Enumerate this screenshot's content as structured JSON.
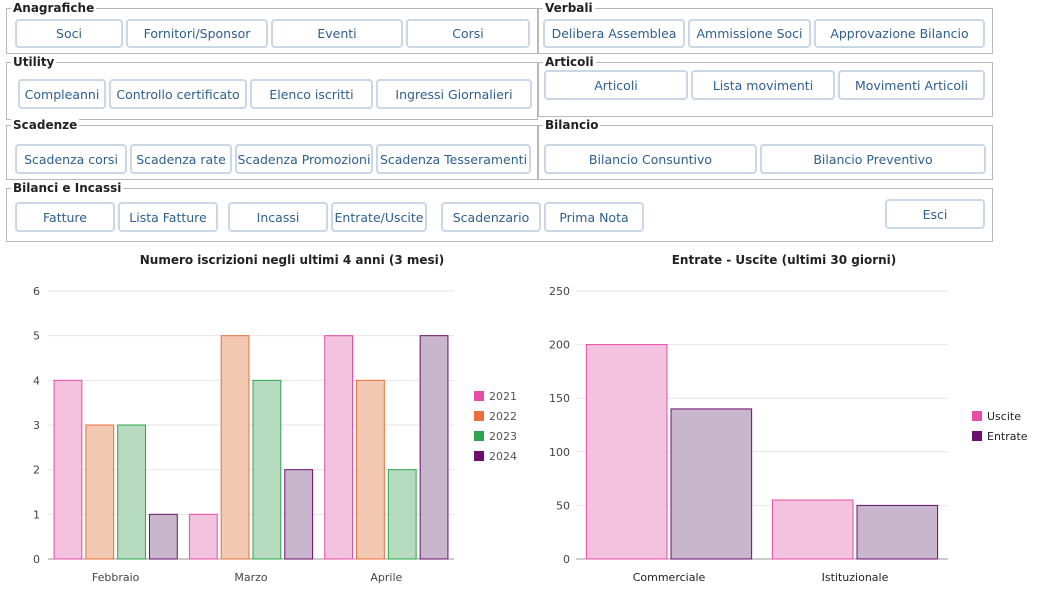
{
  "groups": {
    "anagrafiche": {
      "title": "Anagrafiche",
      "buttons": [
        "Soci",
        "Fornitori/Sponsor",
        "Eventi",
        "Corsi"
      ]
    },
    "verbali": {
      "title": "Verbali",
      "buttons": [
        "Delibera Assemblea",
        "Ammissione Soci",
        "Approvazione Bilancio"
      ]
    },
    "utility": {
      "title": "Utility",
      "buttons": [
        "Compleanni",
        "Controllo certificato",
        "Elenco iscritti",
        "Ingressi Giornalieri"
      ]
    },
    "articoli": {
      "title": "Articoli",
      "buttons": [
        "Articoli",
        "Lista movimenti",
        "Movimenti Articoli"
      ]
    },
    "scadenze": {
      "title": "Scadenze",
      "buttons": [
        "Scadenza corsi",
        "Scadenza rate",
        "Scadenza Promozioni",
        "Scadenza Tesseramenti"
      ]
    },
    "bilancio": {
      "title": "Bilancio",
      "buttons": [
        "Bilancio Consuntivo",
        "Bilancio Preventivo"
      ]
    },
    "bilanci_incassi": {
      "title": "Bilanci e Incassi",
      "buttons": [
        "Fatture",
        "Lista Fatture",
        "Incassi",
        "Entrate/Uscite",
        "Scadenzario",
        "Prima Nota"
      ],
      "exit": "Esci"
    }
  },
  "chart_data": [
    {
      "type": "bar",
      "title": "Numero iscrizioni negli ultimi 4 anni (3 mesi)",
      "categories": [
        "Febbraio",
        "Marzo",
        "Aprile"
      ],
      "series": [
        {
          "name": "2021",
          "values": [
            4,
            1,
            5
          ],
          "color": "#e64ca8",
          "fill": "#f2c2de"
        },
        {
          "name": "2022",
          "values": [
            3,
            5,
            4
          ],
          "color": "#e8703a",
          "fill": "#f4c9b4"
        },
        {
          "name": "2023",
          "values": [
            3,
            4,
            2
          ],
          "color": "#2ea44f",
          "fill": "#b7dbbf"
        },
        {
          "name": "2024",
          "values": [
            1,
            2,
            5
          ],
          "color": "#6a0f6e",
          "fill": "#c8b6cd"
        }
      ],
      "ylim": [
        0,
        6
      ],
      "yticks": [
        0,
        1,
        2,
        3,
        4,
        5,
        6
      ],
      "grid": true,
      "legend": "right"
    },
    {
      "type": "bar",
      "title": "Entrate - Uscite (ultimi 30 giorni)",
      "categories": [
        "Commerciale",
        "Istituzionale"
      ],
      "series": [
        {
          "name": "Uscite",
          "values": [
            200,
            55
          ],
          "color": "#e64ca8",
          "fill": "#f2c2de"
        },
        {
          "name": "Entrate",
          "values": [
            140,
            50
          ],
          "color": "#6a0f6e",
          "fill": "#c8b6cd"
        }
      ],
      "ylim": [
        0,
        250
      ],
      "yticks": [
        0,
        50,
        100,
        150,
        200,
        250
      ],
      "grid": true,
      "legend": "right"
    }
  ]
}
